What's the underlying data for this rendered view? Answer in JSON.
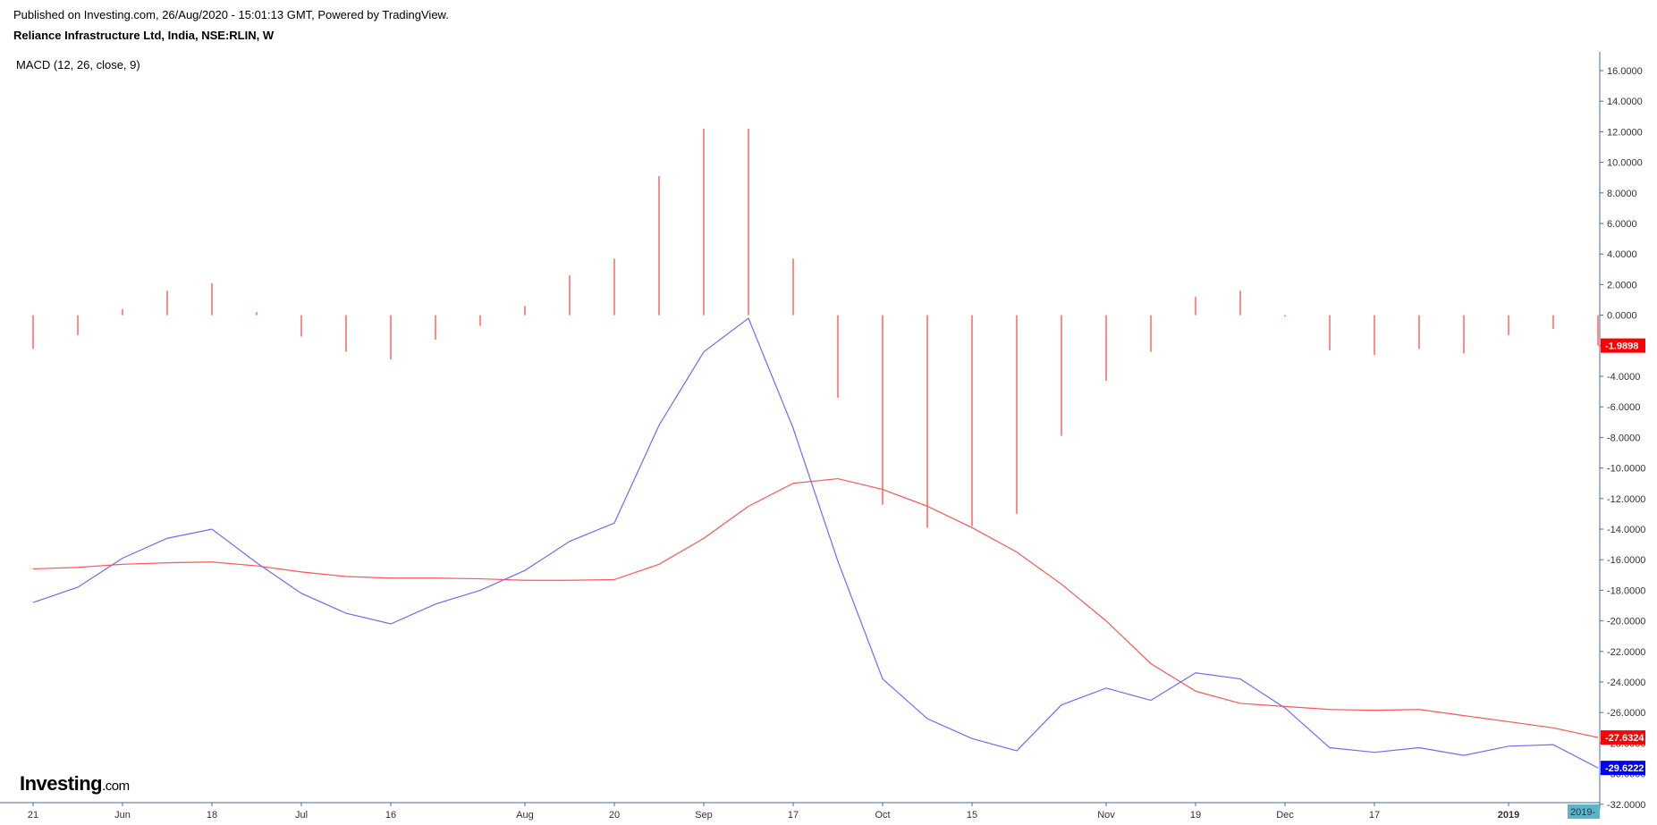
{
  "header": {
    "published": "Published on Investing.com, 26/Aug/2020 - 15:01:13 GMT, Powered by TradingView.",
    "instrument": "Reliance Infrastructure Ltd, India, NSE:RLIN, W"
  },
  "indicator_label": "MACD (12, 26, close, 9)",
  "logo": {
    "main": "Investing",
    "suffix": ".com"
  },
  "colors": {
    "macd_line": "#6b6bff",
    "signal_line": "#ff5555",
    "histogram": "#ff3b3b",
    "axis": "#4a6a9b",
    "tag_red": "#ff0000",
    "tag_blue": "#0000ff",
    "tag_time": "#5fb3c9"
  },
  "chart_data": {
    "type": "line",
    "title": "",
    "ylim": [
      -32,
      16
    ],
    "y_ticks": [
      "16.0000",
      "14.0000",
      "12.0000",
      "10.0000",
      "8.0000",
      "6.0000",
      "4.0000",
      "2.0000",
      "0.0000",
      "-2.0000",
      "-4.0000",
      "-6.0000",
      "-8.0000",
      "-10.0000",
      "-12.0000",
      "-14.0000",
      "-16.0000",
      "-18.0000",
      "-20.0000",
      "-22.0000",
      "-24.0000",
      "-26.0000",
      "-28.0000",
      "-30.0000",
      "-32.0000"
    ],
    "x_labels": [
      {
        "label": "21",
        "idx": 0
      },
      {
        "label": "Jun",
        "idx": 2
      },
      {
        "label": "18",
        "idx": 4
      },
      {
        "label": "Jul",
        "idx": 6
      },
      {
        "label": "16",
        "idx": 8
      },
      {
        "label": "Aug",
        "idx": 11
      },
      {
        "label": "20",
        "idx": 13
      },
      {
        "label": "Sep",
        "idx": 15
      },
      {
        "label": "17",
        "idx": 17
      },
      {
        "label": "Oct",
        "idx": 19
      },
      {
        "label": "15",
        "idx": 21
      },
      {
        "label": "Nov",
        "idx": 24
      },
      {
        "label": "19",
        "idx": 26
      },
      {
        "label": "Dec",
        "idx": 28
      },
      {
        "label": "17",
        "idx": 30
      },
      {
        "label": "2019",
        "idx": 33,
        "bold": true
      }
    ],
    "series": [
      {
        "name": "MACD",
        "values": [
          -18.8,
          -17.8,
          -15.9,
          -14.6,
          -14.0,
          -16.2,
          -18.2,
          -19.5,
          -20.2,
          -18.9,
          -18.0,
          -16.7,
          -14.8,
          -13.6,
          -7.2,
          -2.4,
          -0.2,
          -7.4,
          -16.1,
          -23.8,
          -26.4,
          -27.7,
          -28.5,
          -25.5,
          -24.4,
          -25.2,
          -23.4,
          -23.8,
          -25.7,
          -28.3,
          -28.6,
          -28.3,
          -28.8,
          -28.2,
          -28.1,
          -29.6222
        ]
      },
      {
        "name": "Signal",
        "values": [
          -16.6,
          -16.5,
          -16.3,
          -16.2,
          -16.15,
          -16.4,
          -16.8,
          -17.1,
          -17.2,
          -17.2,
          -17.25,
          -17.35,
          -17.35,
          -17.3,
          -16.3,
          -14.6,
          -12.5,
          -11.0,
          -10.7,
          -11.4,
          -12.5,
          -13.9,
          -15.5,
          -17.6,
          -20.0,
          -22.8,
          -24.6,
          -25.4,
          -25.6,
          -25.8,
          -25.85,
          -25.8,
          -26.2,
          -26.6,
          -27.0,
          -27.6324
        ]
      },
      {
        "name": "Histogram",
        "values": [
          -2.2,
          -1.3,
          0.4,
          1.6,
          2.1,
          0.2,
          -1.4,
          -2.4,
          -2.9,
          -1.6,
          -0.7,
          0.6,
          2.6,
          3.7,
          9.1,
          12.2,
          12.2,
          3.7,
          -5.4,
          -12.4,
          -13.9,
          -13.8,
          -13.0,
          -7.9,
          -4.3,
          -2.4,
          1.2,
          1.6,
          -0.1,
          -2.3,
          -2.6,
          -2.2,
          -2.5,
          -1.3,
          -0.9,
          -1.9898
        ]
      }
    ],
    "last_values": {
      "histogram": "-1.9898",
      "signal": "-27.6324",
      "macd": "-29.6222"
    },
    "time_tag": "2019-"
  }
}
